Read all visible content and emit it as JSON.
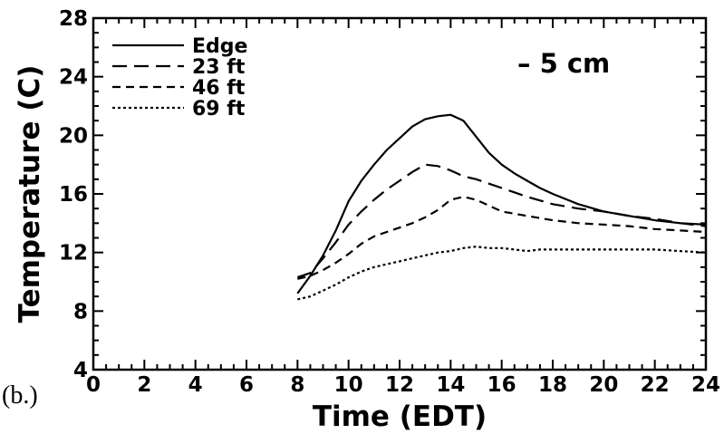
{
  "chart_data": {
    "type": "line",
    "title": "",
    "annotation": "– 5 cm",
    "panel_label": "(b.)",
    "xlabel": "Time (EDT)",
    "ylabel": "Temperature (C)",
    "xlim": [
      0,
      24
    ],
    "ylim": [
      4,
      28
    ],
    "xticks": [
      0,
      2,
      4,
      6,
      8,
      10,
      12,
      14,
      16,
      18,
      20,
      22,
      24
    ],
    "yticks": [
      4,
      8,
      12,
      16,
      20,
      24,
      28
    ],
    "grid": false,
    "legend_position": "top-left",
    "series": [
      {
        "name": "Edge",
        "style": "solid",
        "x": [
          8.0,
          8.5,
          9.0,
          9.5,
          10.0,
          10.5,
          11.0,
          11.5,
          12.0,
          12.5,
          13.0,
          13.5,
          14.0,
          14.5,
          15.0,
          15.5,
          16.0,
          16.5,
          17.0,
          17.5,
          18.0,
          19.0,
          20.0,
          21.0,
          22.0,
          23.0,
          24.0
        ],
        "y": [
          9.2,
          10.4,
          11.8,
          13.5,
          15.5,
          16.9,
          18.0,
          19.0,
          19.8,
          20.6,
          21.1,
          21.3,
          21.4,
          21.0,
          19.9,
          18.8,
          18.0,
          17.4,
          16.9,
          16.4,
          16.0,
          15.3,
          14.8,
          14.5,
          14.2,
          14.0,
          13.9
        ]
      },
      {
        "name": "23 ft",
        "style": "long-dash",
        "x": [
          8.0,
          8.5,
          9.0,
          9.5,
          10.0,
          10.5,
          11.0,
          11.5,
          12.0,
          12.5,
          13.0,
          13.5,
          14.0,
          14.5,
          15.0,
          15.5,
          16.0,
          17.0,
          18.0,
          19.0,
          20.0,
          21.0,
          22.0,
          23.0,
          24.0
        ],
        "y": [
          10.3,
          10.6,
          11.6,
          12.7,
          13.9,
          14.8,
          15.6,
          16.3,
          16.9,
          17.5,
          18.0,
          17.9,
          17.6,
          17.2,
          17.0,
          16.7,
          16.4,
          15.8,
          15.3,
          15.0,
          14.8,
          14.5,
          14.3,
          14.0,
          13.8
        ]
      },
      {
        "name": "46 ft",
        "style": "short-dash",
        "x": [
          8.0,
          8.5,
          9.0,
          9.5,
          10.0,
          10.5,
          11.0,
          11.5,
          12.0,
          12.5,
          13.0,
          13.5,
          14.0,
          14.5,
          15.0,
          15.5,
          16.0,
          17.0,
          18.0,
          19.0,
          20.0,
          21.0,
          22.0,
          23.0,
          24.0
        ],
        "y": [
          10.2,
          10.4,
          10.8,
          11.3,
          11.9,
          12.6,
          13.1,
          13.4,
          13.7,
          14.0,
          14.4,
          14.9,
          15.6,
          15.8,
          15.6,
          15.2,
          14.8,
          14.5,
          14.2,
          14.0,
          13.9,
          13.8,
          13.6,
          13.5,
          13.4
        ]
      },
      {
        "name": "69 ft",
        "style": "dotted",
        "x": [
          8.0,
          8.5,
          9.0,
          9.5,
          10.0,
          10.5,
          11.0,
          11.5,
          12.0,
          12.5,
          13.0,
          13.5,
          14.0,
          14.5,
          15.0,
          15.5,
          16.0,
          16.5,
          17.0,
          17.5,
          18.0,
          19.0,
          20.0,
          21.0,
          22.0,
          23.0,
          24.0
        ],
        "y": [
          8.8,
          9.0,
          9.4,
          9.8,
          10.3,
          10.7,
          11.0,
          11.2,
          11.4,
          11.6,
          11.8,
          12.0,
          12.1,
          12.3,
          12.4,
          12.3,
          12.3,
          12.2,
          12.1,
          12.2,
          12.2,
          12.2,
          12.2,
          12.2,
          12.2,
          12.1,
          12.0
        ]
      }
    ]
  }
}
